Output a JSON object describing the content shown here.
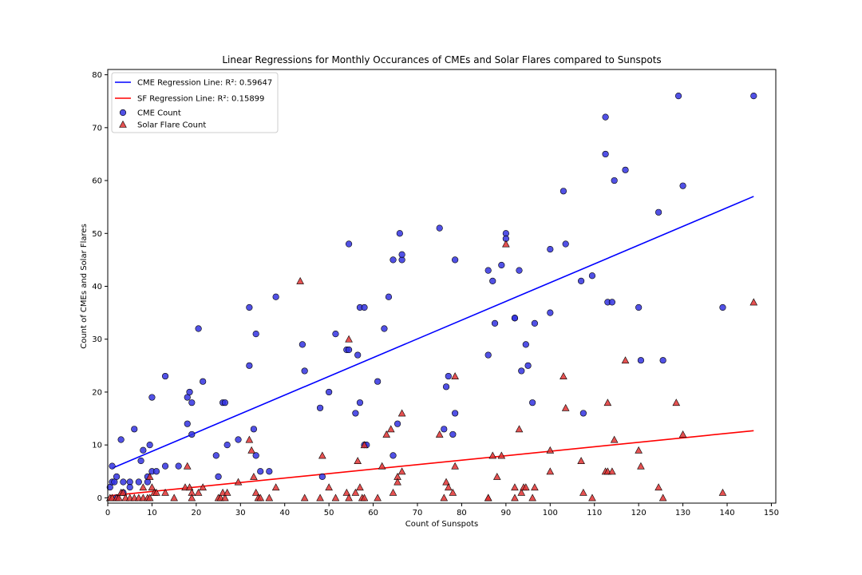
{
  "chart_data": {
    "type": "scatter",
    "title": "Linear Regressions for Monthly Occurances of CMEs and Solar Flares compared to Sunspots",
    "xlabel": "Count of Sunspots",
    "ylabel": "Count of CMEs and Solar Flares",
    "xlim": [
      0,
      151
    ],
    "ylim": [
      -1,
      81
    ],
    "xticks": [
      0,
      10,
      20,
      30,
      40,
      50,
      60,
      70,
      80,
      90,
      100,
      110,
      120,
      130,
      140,
      150
    ],
    "yticks": [
      0,
      10,
      20,
      30,
      40,
      50,
      60,
      70,
      80
    ],
    "grid": false,
    "legend": {
      "placement": "top-left",
      "entries": [
        {
          "label": "CME Regression Line: R²: 0.59647",
          "kind": "line",
          "color": "#0000ff"
        },
        {
          "label": "SF Regression Line: R²: 0.15899",
          "kind": "line",
          "color": "#ff0000"
        },
        {
          "label": "CME Count",
          "kind": "circle",
          "color": "#3333e0"
        },
        {
          "label": "Solar Flare Count",
          "kind": "triangle",
          "color": "#e03333"
        }
      ]
    },
    "lines": [
      {
        "name": "CME Regression Line",
        "color": "#0000ff",
        "points": [
          [
            1,
            5.6
          ],
          [
            146,
            57.0
          ]
        ]
      },
      {
        "name": "SF Regression Line",
        "color": "#ff0000",
        "points": [
          [
            0.5,
            0.4
          ],
          [
            146,
            12.7
          ]
        ]
      }
    ],
    "series": [
      {
        "name": "CME Count",
        "marker": "circle",
        "color": "#3333e0",
        "points": [
          [
            1,
            6
          ],
          [
            0.5,
            2
          ],
          [
            1,
            3
          ],
          [
            1.5,
            3
          ],
          [
            2,
            4
          ],
          [
            2,
            0
          ],
          [
            3,
            11
          ],
          [
            3.5,
            3
          ],
          [
            3.5,
            1
          ],
          [
            5,
            3
          ],
          [
            5,
            2
          ],
          [
            6,
            13
          ],
          [
            7,
            3
          ],
          [
            7.5,
            7
          ],
          [
            8,
            9
          ],
          [
            9,
            4
          ],
          [
            9,
            3
          ],
          [
            9.5,
            10
          ],
          [
            10,
            5
          ],
          [
            10,
            19
          ],
          [
            11,
            5
          ],
          [
            13,
            23
          ],
          [
            13,
            6
          ],
          [
            16,
            6
          ],
          [
            18,
            14
          ],
          [
            18,
            19
          ],
          [
            18.5,
            20
          ],
          [
            19,
            12
          ],
          [
            19,
            18
          ],
          [
            20.5,
            32
          ],
          [
            21.5,
            22
          ],
          [
            24.5,
            8
          ],
          [
            25,
            4
          ],
          [
            26,
            18
          ],
          [
            26.5,
            18
          ],
          [
            27,
            10
          ],
          [
            29.5,
            11
          ],
          [
            32,
            36
          ],
          [
            32,
            25
          ],
          [
            33,
            13
          ],
          [
            33.5,
            31
          ],
          [
            33.5,
            8
          ],
          [
            34.5,
            5
          ],
          [
            36.5,
            5
          ],
          [
            38,
            38
          ],
          [
            44,
            29
          ],
          [
            44.5,
            24
          ],
          [
            48,
            17
          ],
          [
            48.5,
            4
          ],
          [
            50,
            20
          ],
          [
            51.5,
            31
          ],
          [
            54,
            28
          ],
          [
            54.5,
            48
          ],
          [
            54.5,
            28
          ],
          [
            56,
            16
          ],
          [
            56.5,
            27
          ],
          [
            57,
            18
          ],
          [
            57,
            36
          ],
          [
            58,
            36
          ],
          [
            58,
            10
          ],
          [
            58.5,
            10
          ],
          [
            61,
            22
          ],
          [
            62.5,
            32
          ],
          [
            63.5,
            38
          ],
          [
            64.5,
            8
          ],
          [
            64.5,
            45
          ],
          [
            65.5,
            14
          ],
          [
            66,
            50
          ],
          [
            66.5,
            45
          ],
          [
            66.5,
            46
          ],
          [
            75,
            51
          ],
          [
            76,
            13
          ],
          [
            76.5,
            21
          ],
          [
            77,
            23
          ],
          [
            78,
            12
          ],
          [
            78.5,
            16
          ],
          [
            78.5,
            45
          ],
          [
            86,
            43
          ],
          [
            86,
            27
          ],
          [
            87,
            41
          ],
          [
            87.5,
            33
          ],
          [
            89,
            44
          ],
          [
            90,
            50
          ],
          [
            90,
            49
          ],
          [
            92,
            34
          ],
          [
            92,
            34
          ],
          [
            93,
            43
          ],
          [
            93.5,
            24
          ],
          [
            94.5,
            29
          ],
          [
            95,
            25
          ],
          [
            96,
            18
          ],
          [
            96.5,
            33
          ],
          [
            100,
            47
          ],
          [
            100,
            35
          ],
          [
            103,
            58
          ],
          [
            103.5,
            48
          ],
          [
            107,
            41
          ],
          [
            107.5,
            16
          ],
          [
            109.5,
            42
          ],
          [
            112.5,
            72
          ],
          [
            112.5,
            65
          ],
          [
            113,
            37
          ],
          [
            114,
            37
          ],
          [
            114.5,
            60
          ],
          [
            117,
            62
          ],
          [
            120,
            36
          ],
          [
            120.5,
            26
          ],
          [
            124.5,
            54
          ],
          [
            125.5,
            26
          ],
          [
            129,
            76
          ],
          [
            130,
            59
          ],
          [
            139,
            36
          ],
          [
            146,
            76
          ]
        ]
      },
      {
        "name": "Solar Flare Count",
        "marker": "triangle",
        "color": "#e03333",
        "points": [
          [
            0.5,
            0
          ],
          [
            1,
            0
          ],
          [
            2,
            0
          ],
          [
            2.5,
            0
          ],
          [
            3,
            1
          ],
          [
            3.5,
            1
          ],
          [
            4,
            0
          ],
          [
            5,
            0
          ],
          [
            6,
            0
          ],
          [
            7,
            0
          ],
          [
            8,
            0
          ],
          [
            8,
            2
          ],
          [
            9,
            0
          ],
          [
            9.5,
            0
          ],
          [
            9.5,
            4
          ],
          [
            10,
            2
          ],
          [
            10.5,
            1
          ],
          [
            11,
            1
          ],
          [
            13,
            1
          ],
          [
            15,
            0
          ],
          [
            17.5,
            2
          ],
          [
            18,
            6
          ],
          [
            18.5,
            2
          ],
          [
            19,
            1
          ],
          [
            19,
            0
          ],
          [
            20.5,
            1
          ],
          [
            21.5,
            2
          ],
          [
            25,
            0
          ],
          [
            25.5,
            0
          ],
          [
            26,
            1
          ],
          [
            26.5,
            0
          ],
          [
            27,
            1
          ],
          [
            29.5,
            3
          ],
          [
            32,
            11
          ],
          [
            32.5,
            9
          ],
          [
            33,
            4
          ],
          [
            33.5,
            1
          ],
          [
            34,
            0
          ],
          [
            34.5,
            0
          ],
          [
            36.5,
            0
          ],
          [
            38,
            2
          ],
          [
            43.5,
            41
          ],
          [
            44.5,
            0
          ],
          [
            48,
            0
          ],
          [
            48.5,
            8
          ],
          [
            50,
            2
          ],
          [
            51.5,
            0
          ],
          [
            54,
            1
          ],
          [
            54.5,
            30
          ],
          [
            54.5,
            0
          ],
          [
            56,
            1
          ],
          [
            56.5,
            7
          ],
          [
            57,
            2
          ],
          [
            57.5,
            0
          ],
          [
            58,
            10
          ],
          [
            58,
            0
          ],
          [
            61,
            0
          ],
          [
            62,
            6
          ],
          [
            63,
            12
          ],
          [
            64,
            13
          ],
          [
            64.5,
            1
          ],
          [
            65.5,
            4
          ],
          [
            65.5,
            3
          ],
          [
            66.5,
            5
          ],
          [
            66.5,
            16
          ],
          [
            75,
            12
          ],
          [
            76,
            0
          ],
          [
            76.5,
            3
          ],
          [
            77,
            2
          ],
          [
            78,
            1
          ],
          [
            78.5,
            6
          ],
          [
            78.5,
            23
          ],
          [
            86,
            0
          ],
          [
            86,
            0
          ],
          [
            87,
            8
          ],
          [
            88,
            4
          ],
          [
            89,
            8
          ],
          [
            90,
            48
          ],
          [
            92,
            2
          ],
          [
            92,
            0
          ],
          [
            93,
            13
          ],
          [
            93.5,
            1
          ],
          [
            94,
            2
          ],
          [
            94.5,
            2
          ],
          [
            96,
            0
          ],
          [
            96.5,
            2
          ],
          [
            100,
            9
          ],
          [
            100,
            5
          ],
          [
            103,
            23
          ],
          [
            103.5,
            17
          ],
          [
            107,
            7
          ],
          [
            107.5,
            1
          ],
          [
            109.5,
            0
          ],
          [
            112.5,
            5
          ],
          [
            113,
            18
          ],
          [
            113,
            5
          ],
          [
            114,
            5
          ],
          [
            114.5,
            11
          ],
          [
            117,
            26
          ],
          [
            120,
            9
          ],
          [
            120.5,
            6
          ],
          [
            124.5,
            2
          ],
          [
            125.5,
            0
          ],
          [
            128.5,
            18
          ],
          [
            130,
            12
          ],
          [
            139,
            1
          ],
          [
            146,
            37
          ]
        ]
      }
    ]
  }
}
